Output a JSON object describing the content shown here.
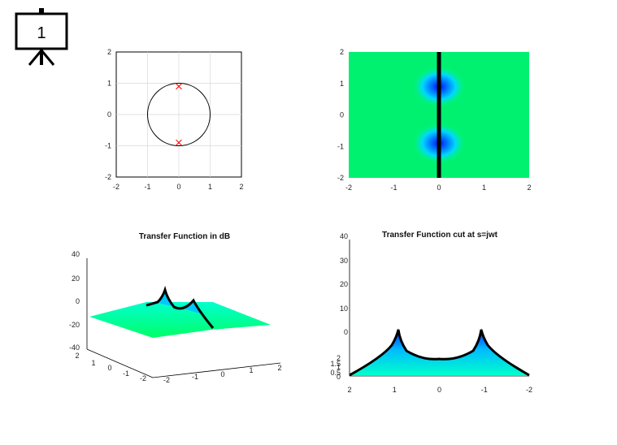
{
  "badge": {
    "label": "1",
    "icon": "presentation-board-icon"
  },
  "colors": {
    "pole": "#ff0000",
    "accent": "#000000",
    "surface_low": "#00ff66",
    "surface_high": "#0000ff",
    "surface_mid": "#00ffff"
  },
  "chart_data": [
    {
      "type": "scatter",
      "title": "",
      "xlabel": "",
      "ylabel": "",
      "xlim": [
        -2,
        2
      ],
      "ylim": [
        -2,
        2
      ],
      "xticks": [
        "-2",
        "-1",
        "0",
        "1",
        "2"
      ],
      "yticks": [
        "2",
        "1",
        "0",
        "-1",
        "-2"
      ],
      "grid": true,
      "circle": {
        "center": [
          0,
          0
        ],
        "radius": 1
      },
      "poles": [
        {
          "x": 0,
          "y": 0.9
        },
        {
          "x": 0,
          "y": -0.9
        }
      ]
    },
    {
      "type": "heatmap",
      "title": "",
      "xlim": [
        -2,
        2
      ],
      "ylim": [
        -2,
        2
      ],
      "xticks": [
        "-2",
        "-1",
        "0",
        "1",
        "2"
      ],
      "yticks": [
        "2",
        "1",
        "0",
        "-1",
        "-2"
      ],
      "peaks": [
        {
          "x": 0,
          "y": 0.9
        },
        {
          "x": 0,
          "y": -0.9
        }
      ],
      "cut_line_x": 0
    },
    {
      "type": "surface",
      "title": "Transfer Function in dB",
      "zticks": [
        "40",
        "20",
        "0",
        "-20",
        "-40"
      ],
      "yticks": [
        "2",
        "1",
        "0",
        "-1",
        "-2"
      ],
      "xticks": [
        "-2",
        "-1",
        "0",
        "1",
        "2"
      ],
      "peaks": [
        {
          "x": 0,
          "y": 0.9
        },
        {
          "x": 0,
          "y": -0.9
        }
      ]
    },
    {
      "type": "surface",
      "title": "Transfer Function cut at s=jwt",
      "zticks": [
        "40",
        "30",
        "20",
        "10",
        "0"
      ],
      "lower_ticks": [
        "2",
        "1.5",
        "1",
        "0.5",
        "0"
      ],
      "xticks": [
        "2",
        "1",
        "0",
        "-1",
        "-2"
      ],
      "peaks": [
        {
          "w": 0.9
        },
        {
          "w": -0.9
        }
      ]
    }
  ]
}
